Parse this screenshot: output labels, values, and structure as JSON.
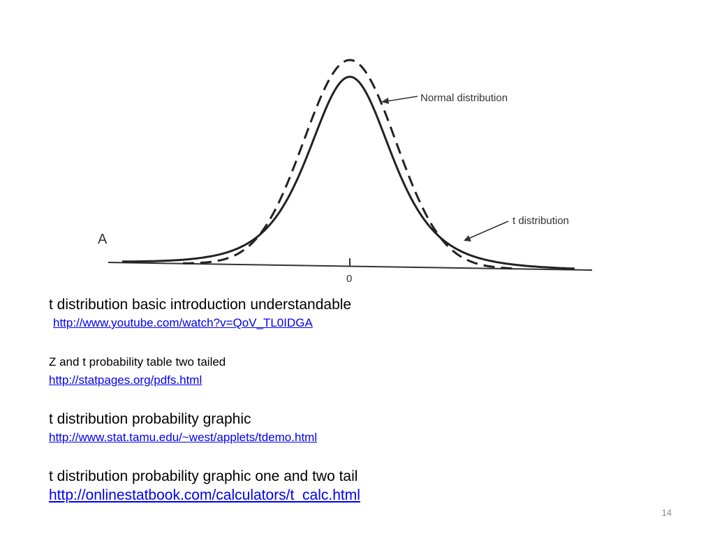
{
  "figure": {
    "panel_letter": "A",
    "axis_zero_label": "0",
    "normal_label": "Normal distribution",
    "t_label": "t distribution"
  },
  "links": [
    {
      "heading": "t distribution basic introduction understandable",
      "url": "http://www.youtube.com/watch?v=QoV_TL0IDGA"
    },
    {
      "heading": "Z and t probability table two tailed",
      "url": "http://statpages.org/pdfs.html"
    },
    {
      "heading": "t distribution probability graphic",
      "url": "http://www.stat.tamu.edu/~west/applets/tdemo.html"
    },
    {
      "heading": "t distribution probability graphic one and two tail",
      "url": "http://onlinestatbook.com/calculators/t_calc.html"
    }
  ],
  "slide_number": "14",
  "colors": {
    "link": "#0000ee",
    "text": "#000000",
    "slide_number": "#8a8a8a"
  }
}
